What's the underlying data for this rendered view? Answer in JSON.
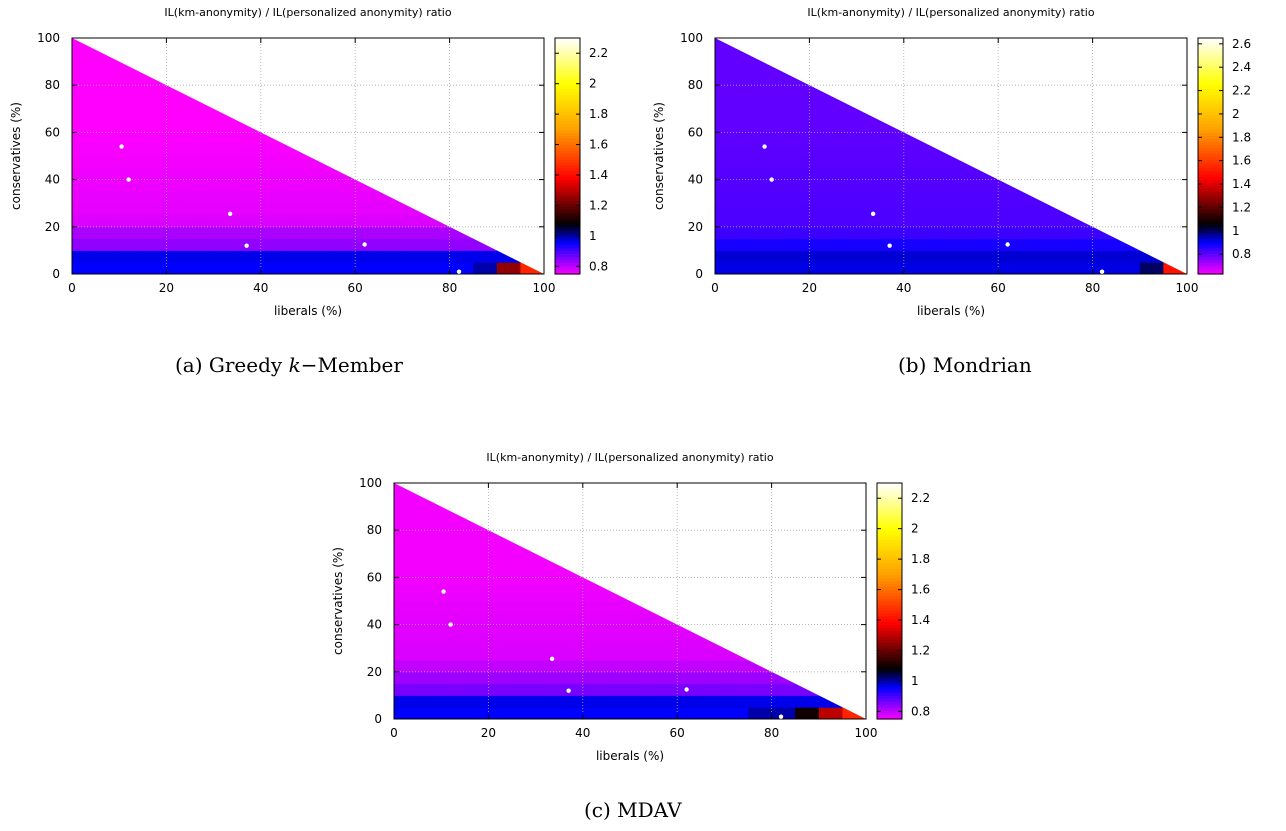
{
  "subfigures": [
    {
      "id": "a",
      "caption": "(a) Greedy k−Member",
      "caption_parts": {
        "prefix": "(a) Greedy ",
        "italic": "k",
        "suffix": "−Member"
      },
      "chart_data": {
        "type": "heatmap",
        "title": "IL(km-anonymity) / IL(personalized anonymity) ratio",
        "xlabel": "liberals (%)",
        "ylabel": "conservatives (%)",
        "xlim": [
          0,
          100
        ],
        "ylim": [
          0,
          100
        ],
        "xticks": [
          0,
          20,
          40,
          60,
          80,
          100
        ],
        "yticks": [
          0,
          20,
          40,
          60,
          80,
          100
        ],
        "grid": true,
        "region": "liberals + conservatives <= 100",
        "colorbar": {
          "range": [
            0.75,
            2.3
          ],
          "ticks": [
            0.8,
            1,
            1.2,
            1.4,
            1.6,
            1.8,
            2,
            2.2
          ],
          "palette": "magenta-blue-black-red-yellow-white"
        },
        "cell_size": 5,
        "ratio_model": {
          "base": 0.75,
          "band_values": [
            0.96,
            0.97,
            0.84,
            0.82,
            0.78
          ],
          "far_value": 0.75,
          "edge_x": [
            [
              83,
              1.0
            ],
            [
              86,
              1.05
            ],
            [
              90,
              1.25
            ],
            [
              95,
              1.45
            ]
          ]
        },
        "points": [
          [
            10.5,
            54
          ],
          [
            12,
            40
          ],
          [
            33.5,
            25.5
          ],
          [
            37,
            12
          ],
          [
            62,
            12.5
          ],
          [
            82,
            1
          ]
        ]
      }
    },
    {
      "id": "b",
      "caption": "(b) Mondrian",
      "caption_parts": {
        "prefix": "(b) Mondrian",
        "italic": "",
        "suffix": ""
      },
      "chart_data": {
        "type": "heatmap",
        "title": "IL(km-anonymity) / IL(personalized anonymity) ratio",
        "xlabel": "liberals (%)",
        "ylabel": "conservatives (%)",
        "xlim": [
          0,
          100
        ],
        "ylim": [
          0,
          100
        ],
        "xticks": [
          0,
          20,
          40,
          60,
          80,
          100
        ],
        "yticks": [
          0,
          20,
          40,
          60,
          80,
          100
        ],
        "grid": true,
        "region": "liberals + conservatives <= 100",
        "colorbar": {
          "range": [
            0.63,
            2.65
          ],
          "ticks": [
            0.8,
            1,
            1.2,
            1.4,
            1.6,
            1.8,
            2,
            2.2,
            2.4,
            2.6
          ],
          "palette": "magenta-blue-black-red-yellow-white"
        },
        "cell_size": 5,
        "ratio_model": {
          "base": 0.8,
          "band_values": [
            0.92,
            0.93,
            0.88,
            0.84,
            0.82
          ],
          "far_value": 0.8,
          "edge_x": [
            [
              88,
              1.0
            ],
            [
              92,
              1.1
            ],
            [
              95,
              1.5
            ]
          ]
        },
        "points": [
          [
            10.5,
            54
          ],
          [
            12,
            40
          ],
          [
            33.5,
            25.5
          ],
          [
            37,
            12
          ],
          [
            62,
            12.5
          ],
          [
            82,
            1
          ]
        ]
      }
    },
    {
      "id": "c",
      "caption": "(c) MDAV",
      "caption_parts": {
        "prefix": "(c) MDAV",
        "italic": "",
        "suffix": ""
      },
      "chart_data": {
        "type": "heatmap",
        "title": "IL(km-anonymity) / IL(personalized anonymity) ratio",
        "xlabel": "liberals (%)",
        "ylabel": "conservatives (%)",
        "xlim": [
          0,
          100
        ],
        "ylim": [
          0,
          100
        ],
        "xticks": [
          0,
          20,
          40,
          60,
          80,
          100
        ],
        "yticks": [
          0,
          20,
          40,
          60,
          80,
          100
        ],
        "grid": true,
        "region": "liberals + conservatives <= 100",
        "colorbar": {
          "range": [
            0.75,
            2.3
          ],
          "ticks": [
            0.8,
            1,
            1.2,
            1.4,
            1.6,
            1.8,
            2,
            2.2
          ],
          "palette": "magenta-blue-black-red-yellow-white"
        },
        "cell_size": 5,
        "ratio_model": {
          "base": 0.76,
          "band_values": [
            0.96,
            0.97,
            0.86,
            0.83,
            0.8
          ],
          "far_value": 0.76,
          "edge_x": [
            [
              75,
              1.0
            ],
            [
              85,
              1.1
            ],
            [
              90,
              1.3
            ],
            [
              95,
              1.45
            ]
          ]
        },
        "points": [
          [
            10.5,
            54
          ],
          [
            12,
            40
          ],
          [
            33.5,
            25.5
          ],
          [
            37,
            12
          ],
          [
            62,
            12.5
          ],
          [
            82,
            1
          ]
        ]
      }
    }
  ]
}
